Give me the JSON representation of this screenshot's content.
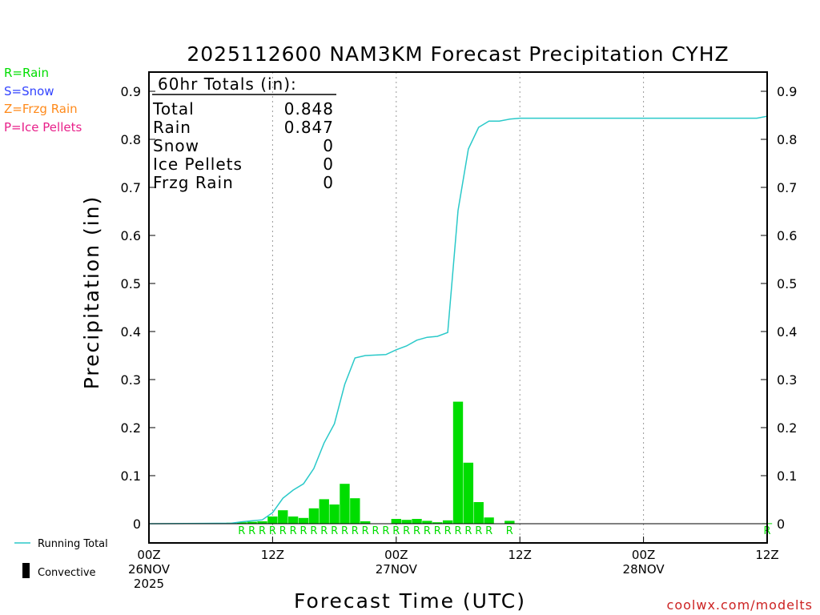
{
  "colors": {
    "rain": "#00dd00",
    "snow": "#3344ff",
    "frzg": "#ff8a1a",
    "ice": "#e8208a",
    "running_total": "#2ac9c9",
    "grid": "#999999",
    "axis": "#000000",
    "footer_link": "#cc2222"
  },
  "legend": {
    "rain": "R=Rain",
    "snow": "S=Snow",
    "frzg": "Z=Frzg Rain",
    "ice": "P=Ice Pellets",
    "running_total": "Running Total",
    "convective": "Convective"
  },
  "totals_box": {
    "title": "60hr Totals (in):",
    "rows": [
      {
        "label": "Total",
        "value": "0.848"
      },
      {
        "label": "Rain",
        "value": "0.847"
      },
      {
        "label": "Snow",
        "value": "0"
      },
      {
        "label": "Ice Pellets",
        "value": "0"
      },
      {
        "label": "Frzg Rain",
        "value": "0"
      }
    ]
  },
  "footer": {
    "link": "coolwx.com/modelts"
  },
  "chart_data": {
    "type": "bar",
    "title": "2025112600 NAM3KM Forecast Precipitation CYHZ",
    "xlabel": "Forecast Time (UTC)",
    "ylabel": "Precipitation (in)",
    "xlim": [
      0,
      60
    ],
    "ylim": [
      -0.04,
      0.94
    ],
    "yticks": [
      "0",
      "0.1",
      "0.2",
      "0.3",
      "0.4",
      "0.5",
      "0.6",
      "0.7",
      "0.8",
      "0.9"
    ],
    "xticks": [
      {
        "hour": 0,
        "lines": [
          "00Z",
          "26NOV",
          "2025"
        ]
      },
      {
        "hour": 12,
        "lines": [
          "12Z"
        ]
      },
      {
        "hour": 24,
        "lines": [
          "00Z",
          "27NOV"
        ]
      },
      {
        "hour": 36,
        "lines": [
          "12Z"
        ]
      },
      {
        "hour": 48,
        "lines": [
          "00Z",
          "28NOV"
        ]
      },
      {
        "hour": 60,
        "lines": [
          "12Z"
        ]
      }
    ],
    "bar_hours": [
      8,
      9,
      10,
      11,
      12,
      13,
      14,
      15,
      16,
      17,
      18,
      19,
      20,
      21,
      22,
      23,
      24,
      25,
      26,
      27,
      28,
      29,
      30,
      31,
      32,
      33,
      34,
      35,
      36,
      37,
      60
    ],
    "bar_values": [
      0.002,
      0.003,
      0.004,
      0.005,
      0.015,
      0.028,
      0.015,
      0.012,
      0.032,
      0.051,
      0.04,
      0.083,
      0.053,
      0.005,
      0.0,
      0.0,
      0.01,
      0.008,
      0.01,
      0.006,
      0.003,
      0.007,
      0.254,
      0.127,
      0.045,
      0.013,
      0.0,
      0.006,
      0.0,
      0.0,
      0.001
    ],
    "type_markers": {
      "label": "R",
      "hours": [
        9,
        10,
        11,
        12,
        13,
        14,
        15,
        16,
        17,
        18,
        19,
        20,
        21,
        22,
        23,
        24,
        25,
        26,
        27,
        28,
        29,
        30,
        31,
        32,
        33,
        35,
        60
      ]
    },
    "running_total": {
      "name": "Running Total",
      "hours": [
        0,
        8,
        9,
        10,
        11,
        12,
        13,
        14,
        15,
        16,
        17,
        18,
        19,
        20,
        21,
        22,
        23,
        24,
        25,
        26,
        27,
        28,
        29,
        30,
        31,
        32,
        33,
        34,
        35,
        36,
        59,
        60
      ],
      "values": [
        0,
        0.001,
        0.004,
        0.006,
        0.008,
        0.023,
        0.053,
        0.07,
        0.083,
        0.115,
        0.168,
        0.208,
        0.29,
        0.345,
        0.35,
        0.351,
        0.352,
        0.362,
        0.37,
        0.382,
        0.388,
        0.39,
        0.398,
        0.652,
        0.78,
        0.825,
        0.838,
        0.838,
        0.842,
        0.844,
        0.844,
        0.848
      ]
    }
  }
}
